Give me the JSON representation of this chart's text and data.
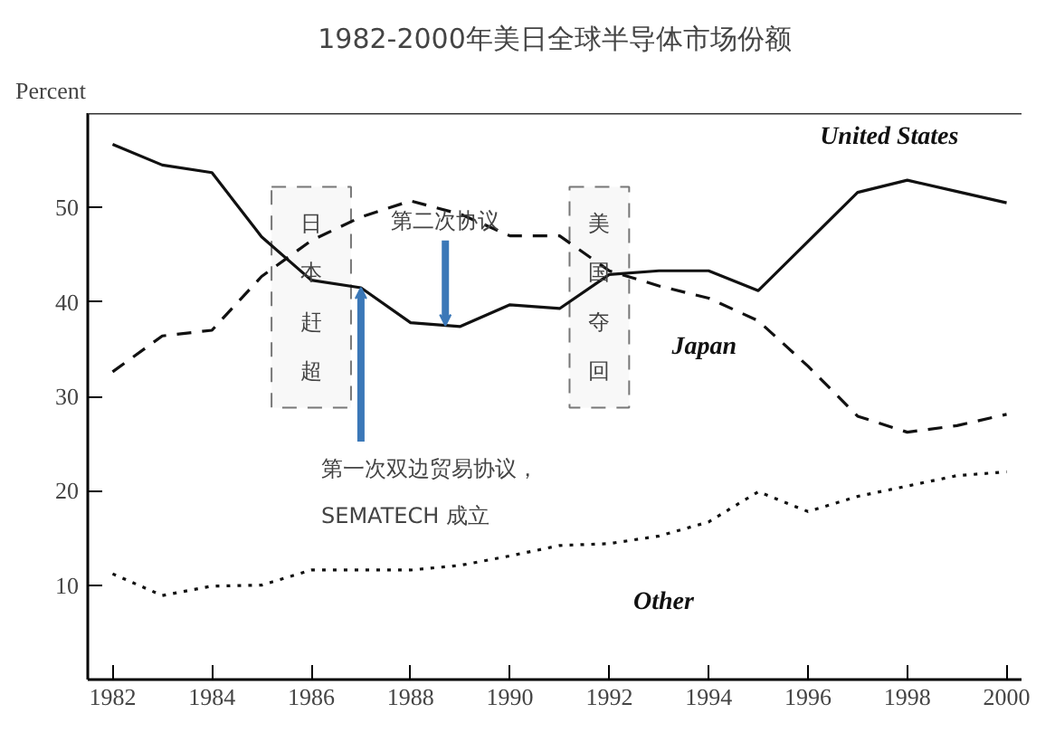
{
  "chart_data": {
    "type": "line",
    "title": "1982-2000年美日全球半导体市场份额",
    "ylabel": "Percent",
    "x": [
      1982,
      1983,
      1984,
      1985,
      1986,
      1987,
      1988,
      1989,
      1990,
      1991,
      1992,
      1993,
      1994,
      1995,
      1996,
      1997,
      1998,
      1999,
      2000
    ],
    "series": [
      {
        "name": "United States",
        "color": "#111111",
        "line_style": "solid",
        "values": [
          56.7,
          54.5,
          53.7,
          46.9,
          42.3,
          41.5,
          37.8,
          37.4,
          39.7,
          39.3,
          42.9,
          43.3,
          43.3,
          41.2,
          46.4,
          51.6,
          52.9,
          51.7,
          50.5
        ]
      },
      {
        "name": "Japan",
        "color": "#111111",
        "line_style": "dashed",
        "values": [
          32.6,
          36.4,
          37,
          42.7,
          46.5,
          49,
          50.7,
          49.3,
          47,
          47,
          43.3,
          41.7,
          40.4,
          38,
          33.2,
          27.9,
          26.2,
          26.9,
          28.1
        ]
      },
      {
        "name": "Other",
        "color": "#111111",
        "line_style": "dotted",
        "values": [
          11.2,
          8.9,
          9.9,
          10,
          11.6,
          11.6,
          11.6,
          12.1,
          13.1,
          14.2,
          14.4,
          15.2,
          16.7,
          19.9,
          17.8,
          19.4,
          20.5,
          21.6,
          22
        ]
      }
    ],
    "xlim": [
      1981.5,
      2000.3
    ],
    "ylim": [
      0,
      60
    ],
    "xticks": [
      1982,
      1984,
      1986,
      1988,
      1990,
      1992,
      1994,
      1996,
      1998,
      2000
    ],
    "yticks": [
      10,
      20,
      30,
      40,
      50
    ],
    "bands": [
      {
        "axis": "x",
        "from": 1985.2,
        "to": 1986.8,
        "label": "日本赶超"
      },
      {
        "axis": "x",
        "from": 1991.2,
        "to": 1992.4,
        "label": "美国夺回"
      }
    ],
    "annotations": [
      {
        "text": "第一次双边贸易协议，SEMATECH 成立",
        "x": 1987,
        "y": 41.5
      },
      {
        "text": "第二次协议",
        "x": 1988.7,
        "y": 37.5
      }
    ],
    "marker": "none"
  }
}
